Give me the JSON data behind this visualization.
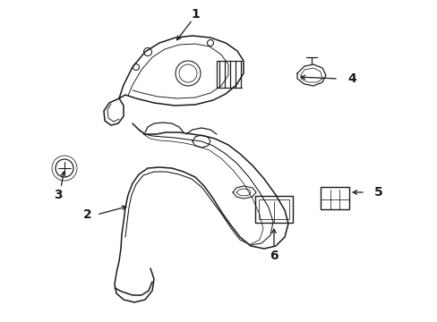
{
  "background_color": "#ffffff",
  "line_color": "#1a1a1a",
  "line_width": 1.1,
  "label_fontsize": 10,
  "arrow_color": "#1a1a1a"
}
